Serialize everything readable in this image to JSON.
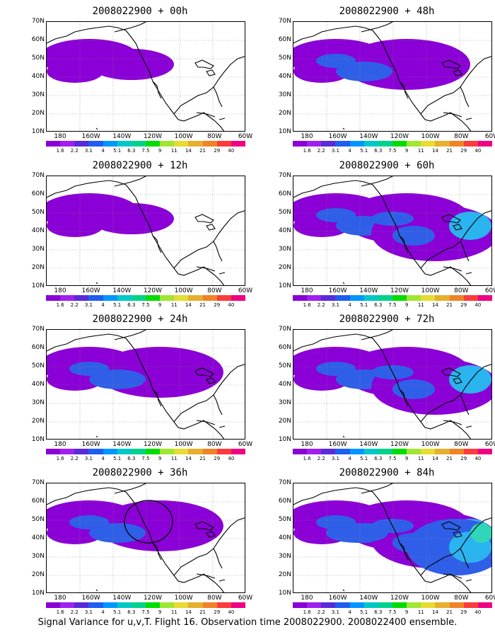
{
  "panels": [
    {
      "title": "2008022900 + 00h",
      "level": 1
    },
    {
      "title": "2008022900 + 48h",
      "level": 2
    },
    {
      "title": "2008022900 + 12h",
      "level": 1
    },
    {
      "title": "2008022900 + 60h",
      "level": 3
    },
    {
      "title": "2008022900 + 24h",
      "level": 2
    },
    {
      "title": "2008022900 + 72h",
      "level": 3
    },
    {
      "title": "2008022900 + 36h",
      "level": 2,
      "has_circle": true
    },
    {
      "title": "2008022900 + 84h",
      "level": 4
    }
  ],
  "lat_labels": [
    "70N",
    "60N",
    "50N",
    "40N",
    "30N",
    "20N",
    "10N"
  ],
  "lon_labels": [
    "180",
    "160W",
    "140W",
    "120W",
    "100W",
    "80W",
    "60W"
  ],
  "colorbar": {
    "labels": [
      "1.6",
      "2.2",
      "3.1",
      "4",
      "5.1",
      "6.3",
      "7.5",
      "9",
      "11",
      "14",
      "21",
      "29",
      "40"
    ],
    "colors": [
      "#8a00d6",
      "#a020f0",
      "#5a2bd8",
      "#1e5ef0",
      "#0096ff",
      "#00c8c8",
      "#00d28c",
      "#00dc00",
      "#a0e632",
      "#e6dc32",
      "#e6af2d",
      "#f08228",
      "#fa3c3c",
      "#f00082"
    ]
  },
  "field_colors": {
    "purple": "#8a00d6",
    "violet": "#7b2de0",
    "blue": "#2f5fe8",
    "lightblue": "#2ab4f0",
    "cyan": "#2fd6b8",
    "green": "#36d64a",
    "magenta": "#f000a0"
  },
  "footer": "Signal Variance for u,v,T. Flight 16. Observation time 2008022900. 2008022400 ensemble."
}
